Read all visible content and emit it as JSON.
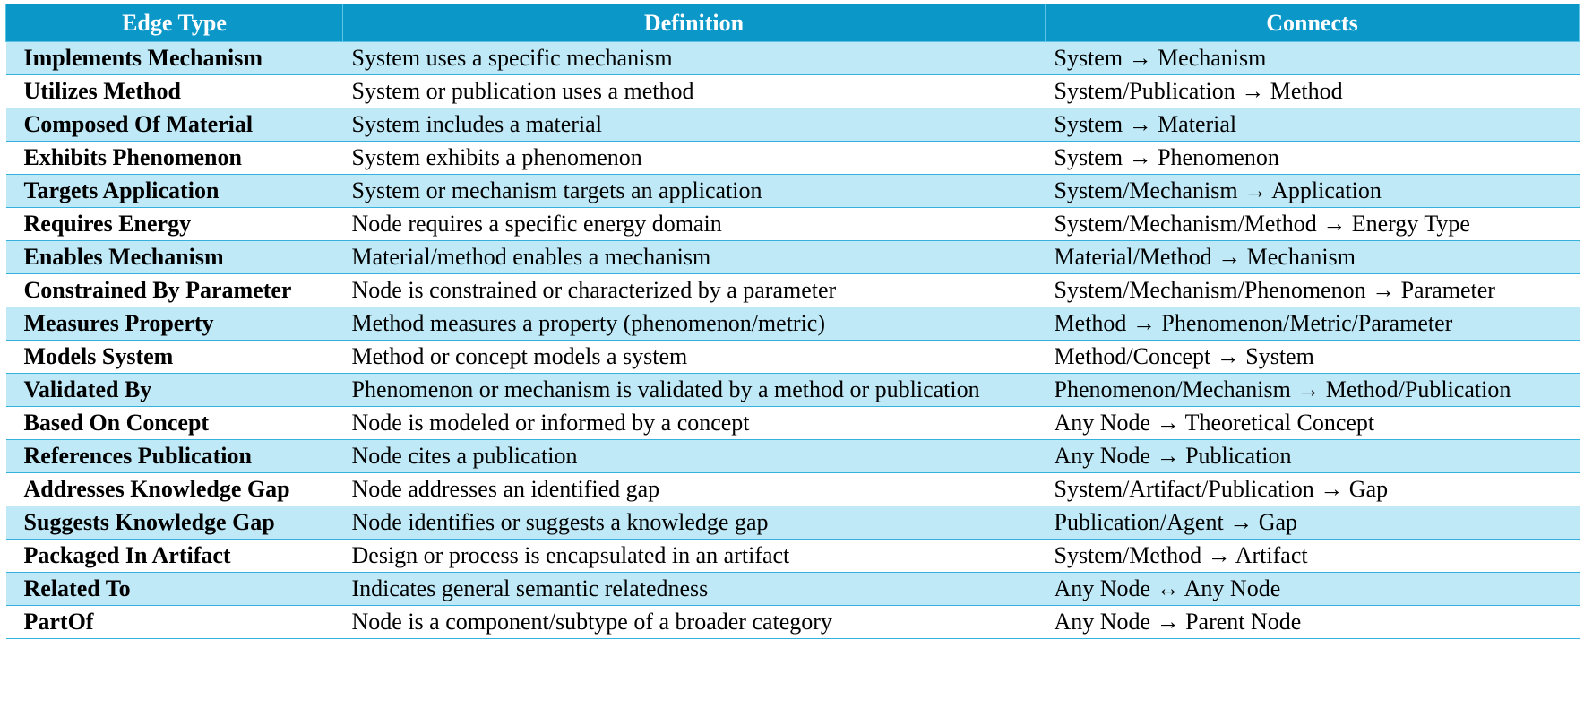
{
  "table": {
    "columns": [
      "Edge Type",
      "Definition",
      "Connects"
    ],
    "rows": [
      [
        "Implements Mechanism",
        "System uses a specific mechanism",
        "System → Mechanism"
      ],
      [
        "Utilizes Method",
        "System or publication uses a method",
        "System/Publication → Method"
      ],
      [
        "Composed Of Material",
        "System includes a material",
        "System → Material"
      ],
      [
        "Exhibits Phenomenon",
        "System exhibits a phenomenon",
        "System → Phenomenon"
      ],
      [
        "Targets Application",
        "System or mechanism targets an application",
        "System/Mechanism → Application"
      ],
      [
        "Requires Energy",
        "Node requires a specific energy domain",
        "System/Mechanism/Method → Energy Type"
      ],
      [
        "Enables Mechanism",
        "Material/method enables a mechanism",
        "Material/Method → Mechanism"
      ],
      [
        "Constrained By Parameter",
        "Node is constrained or characterized by a parameter",
        "System/Mechanism/Phenomenon → Parameter"
      ],
      [
        "Measures Property",
        "Method measures a property (phenomenon/metric)",
        "Method → Phenomenon/Metric/Parameter"
      ],
      [
        "Models System",
        "Method or concept models a system",
        "Method/Concept → System"
      ],
      [
        "Validated By",
        "Phenomenon or mechanism is validated by a method or publication",
        "Phenomenon/Mechanism → Method/Publication"
      ],
      [
        "Based On Concept",
        "Node is modeled or informed by a concept",
        "Any Node → Theoretical Concept"
      ],
      [
        "References Publication",
        "Node cites a publication",
        "Any Node → Publication"
      ],
      [
        "Addresses Knowledge Gap",
        "Node addresses an identified gap",
        "System/Artifact/Publication → Gap"
      ],
      [
        "Suggests Knowledge Gap",
        "Node identifies or suggests a knowledge gap",
        "Publication/Agent → Gap"
      ],
      [
        "Packaged In Artifact",
        "Design or process is encapsulated in an artifact",
        "System/Method → Artifact"
      ],
      [
        "Related To",
        "Indicates general semantic relatedness",
        "Any Node ↔ Any Node"
      ],
      [
        "PartOf",
        "Node is a component/subtype of a broader category",
        "Any Node → Parent Node"
      ]
    ]
  }
}
